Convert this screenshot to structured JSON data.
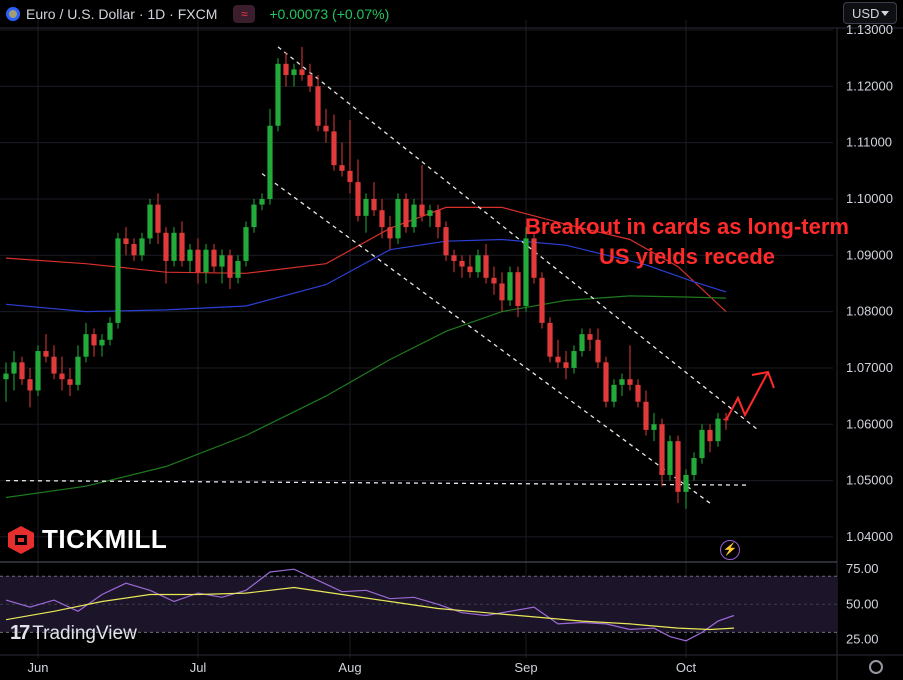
{
  "header": {
    "title": "Euro / U.S. Dollar · 1D · FXCM",
    "badge_icon": "≈",
    "change": "+0.00073 (+0.07%)"
  },
  "currency_select": "USD",
  "branding": {
    "tickmill": "TICKMILL",
    "tradingview": "TradingView"
  },
  "annotation": {
    "line1": "Breakout in cards as long-term",
    "line2": "US yields recede"
  },
  "colors": {
    "up": "#22ab3a",
    "down": "#e03a3a",
    "ma_fast": "#d8302a",
    "ma_mid": "#2b3fd6",
    "ma_slow": "#1e7a1e",
    "rsi": "#9b6ad6",
    "rsi_ma": "#e8e85a",
    "annotation": "#ff2b2b"
  },
  "chart_data": [
    {
      "type": "candlestick",
      "title": "",
      "x_labels": [
        "Jun",
        "Jul",
        "Aug",
        "Sep",
        "Oct"
      ],
      "y_ticks": [
        "1.04000",
        "1.05000",
        "1.06000",
        "1.07000",
        "1.08000",
        "1.09000",
        "1.10000",
        "1.11000",
        "1.12000",
        "1.13000"
      ],
      "ylim": [
        1.0375,
        1.13
      ],
      "grid": true,
      "candles": [
        [
          1.068,
          1.071,
          1.064,
          1.069
        ],
        [
          1.069,
          1.073,
          1.066,
          1.071
        ],
        [
          1.071,
          1.072,
          1.067,
          1.068
        ],
        [
          1.068,
          1.07,
          1.063,
          1.066
        ],
        [
          1.066,
          1.074,
          1.065,
          1.073
        ],
        [
          1.073,
          1.076,
          1.071,
          1.072
        ],
        [
          1.072,
          1.074,
          1.068,
          1.069
        ],
        [
          1.069,
          1.072,
          1.066,
          1.068
        ],
        [
          1.068,
          1.07,
          1.065,
          1.067
        ],
        [
          1.067,
          1.074,
          1.066,
          1.072
        ],
        [
          1.072,
          1.078,
          1.071,
          1.076
        ],
        [
          1.076,
          1.077,
          1.072,
          1.074
        ],
        [
          1.074,
          1.076,
          1.072,
          1.075
        ],
        [
          1.075,
          1.079,
          1.074,
          1.078
        ],
        [
          1.078,
          1.094,
          1.077,
          1.093
        ],
        [
          1.093,
          1.095,
          1.09,
          1.092
        ],
        [
          1.092,
          1.093,
          1.089,
          1.09
        ],
        [
          1.09,
          1.094,
          1.089,
          1.093
        ],
        [
          1.093,
          1.1,
          1.092,
          1.099
        ],
        [
          1.099,
          1.101,
          1.092,
          1.094
        ],
        [
          1.094,
          1.095,
          1.085,
          1.089
        ],
        [
          1.089,
          1.095,
          1.088,
          1.094
        ],
        [
          1.094,
          1.096,
          1.088,
          1.089
        ],
        [
          1.089,
          1.092,
          1.087,
          1.091
        ],
        [
          1.091,
          1.093,
          1.085,
          1.087
        ],
        [
          1.087,
          1.092,
          1.085,
          1.091
        ],
        [
          1.091,
          1.092,
          1.087,
          1.088
        ],
        [
          1.088,
          1.091,
          1.085,
          1.09
        ],
        [
          1.09,
          1.091,
          1.084,
          1.086
        ],
        [
          1.086,
          1.09,
          1.085,
          1.089
        ],
        [
          1.089,
          1.096,
          1.088,
          1.095
        ],
        [
          1.095,
          1.1,
          1.094,
          1.099
        ],
        [
          1.099,
          1.101,
          1.098,
          1.1
        ],
        [
          1.1,
          1.116,
          1.099,
          1.113
        ],
        [
          1.113,
          1.125,
          1.112,
          1.124
        ],
        [
          1.124,
          1.126,
          1.12,
          1.122
        ],
        [
          1.122,
          1.124,
          1.12,
          1.123
        ],
        [
          1.123,
          1.127,
          1.121,
          1.122
        ],
        [
          1.122,
          1.124,
          1.119,
          1.12
        ],
        [
          1.12,
          1.122,
          1.112,
          1.113
        ],
        [
          1.113,
          1.116,
          1.11,
          1.112
        ],
        [
          1.112,
          1.115,
          1.105,
          1.106
        ],
        [
          1.106,
          1.11,
          1.104,
          1.105
        ],
        [
          1.105,
          1.114,
          1.101,
          1.103
        ],
        [
          1.103,
          1.107,
          1.096,
          1.097
        ],
        [
          1.097,
          1.101,
          1.094,
          1.1
        ],
        [
          1.1,
          1.103,
          1.097,
          1.098
        ],
        [
          1.098,
          1.1,
          1.093,
          1.095
        ],
        [
          1.095,
          1.097,
          1.091,
          1.093
        ],
        [
          1.093,
          1.101,
          1.092,
          1.1
        ],
        [
          1.1,
          1.101,
          1.094,
          1.095
        ],
        [
          1.095,
          1.1,
          1.094,
          1.099
        ],
        [
          1.099,
          1.106,
          1.096,
          1.097
        ],
        [
          1.097,
          1.099,
          1.095,
          1.098
        ],
        [
          1.098,
          1.099,
          1.093,
          1.095
        ],
        [
          1.095,
          1.096,
          1.089,
          1.09
        ],
        [
          1.09,
          1.091,
          1.087,
          1.089
        ],
        [
          1.089,
          1.09,
          1.086,
          1.088
        ],
        [
          1.088,
          1.09,
          1.086,
          1.087
        ],
        [
          1.087,
          1.091,
          1.086,
          1.09
        ],
        [
          1.09,
          1.092,
          1.085,
          1.086
        ],
        [
          1.086,
          1.088,
          1.083,
          1.085
        ],
        [
          1.085,
          1.087,
          1.08,
          1.082
        ],
        [
          1.082,
          1.088,
          1.081,
          1.087
        ],
        [
          1.087,
          1.088,
          1.079,
          1.081
        ],
        [
          1.081,
          1.095,
          1.08,
          1.093
        ],
        [
          1.093,
          1.094,
          1.085,
          1.086
        ],
        [
          1.086,
          1.087,
          1.077,
          1.078
        ],
        [
          1.078,
          1.079,
          1.071,
          1.072
        ],
        [
          1.072,
          1.075,
          1.07,
          1.071
        ],
        [
          1.071,
          1.073,
          1.068,
          1.07
        ],
        [
          1.07,
          1.074,
          1.069,
          1.073
        ],
        [
          1.073,
          1.077,
          1.072,
          1.076
        ],
        [
          1.076,
          1.077,
          1.073,
          1.075
        ],
        [
          1.075,
          1.077,
          1.07,
          1.071
        ],
        [
          1.071,
          1.072,
          1.063,
          1.064
        ],
        [
          1.064,
          1.068,
          1.063,
          1.067
        ],
        [
          1.067,
          1.069,
          1.065,
          1.068
        ],
        [
          1.068,
          1.074,
          1.066,
          1.067
        ],
        [
          1.067,
          1.068,
          1.063,
          1.064
        ],
        [
          1.064,
          1.066,
          1.058,
          1.059
        ],
        [
          1.059,
          1.062,
          1.057,
          1.06
        ],
        [
          1.06,
          1.061,
          1.049,
          1.051
        ],
        [
          1.051,
          1.058,
          1.05,
          1.057
        ],
        [
          1.057,
          1.058,
          1.046,
          1.048
        ],
        [
          1.048,
          1.052,
          1.045,
          1.051
        ],
        [
          1.051,
          1.055,
          1.05,
          1.054
        ],
        [
          1.054,
          1.06,
          1.053,
          1.059
        ],
        [
          1.059,
          1.06,
          1.055,
          1.057
        ],
        [
          1.057,
          1.062,
          1.056,
          1.061
        ],
        [
          1.061,
          1.062,
          1.059,
          1.0607
        ]
      ],
      "moving_averages": [
        {
          "color_key": "ma_fast",
          "points": [
            [
              0,
              1.0895
            ],
            [
              10,
              1.0885
            ],
            [
              20,
              1.087
            ],
            [
              30,
              1.0868
            ],
            [
              40,
              1.0885
            ],
            [
              48,
              1.0948
            ],
            [
              55,
              1.0985
            ],
            [
              62,
              1.0985
            ],
            [
              70,
              1.0955
            ],
            [
              78,
              1.0928
            ],
            [
              84,
              1.088
            ],
            [
              90,
              1.08
            ]
          ]
        },
        {
          "color_key": "ma_mid",
          "points": [
            [
              0,
              1.0813
            ],
            [
              10,
              1.08
            ],
            [
              20,
              1.0803
            ],
            [
              30,
              1.081
            ],
            [
              40,
              1.0848
            ],
            [
              48,
              1.091
            ],
            [
              55,
              1.0925
            ],
            [
              62,
              1.0928
            ],
            [
              70,
              1.0918
            ],
            [
              80,
              1.0883
            ],
            [
              86,
              1.0853
            ],
            [
              90,
              1.0835
            ]
          ]
        },
        {
          "color_key": "ma_slow",
          "points": [
            [
              0,
              1.047
            ],
            [
              10,
              1.049
            ],
            [
              20,
              1.0525
            ],
            [
              30,
              1.058
            ],
            [
              40,
              1.065
            ],
            [
              48,
              1.0715
            ],
            [
              55,
              1.0765
            ],
            [
              62,
              1.08
            ],
            [
              70,
              1.082
            ],
            [
              78,
              1.0828
            ],
            [
              85,
              1.0826
            ],
            [
              90,
              1.0824
            ]
          ]
        }
      ],
      "channel": {
        "upper": [
          [
            34,
            1.127
          ],
          [
            94,
            1.059
          ]
        ],
        "lower": [
          [
            32,
            1.1045
          ],
          [
            88,
            1.046
          ]
        ],
        "support": [
          [
            0,
            1.05
          ],
          [
            93,
            1.0492
          ]
        ]
      }
    },
    {
      "type": "line",
      "title": "",
      "y_ticks": [
        "25.00",
        "50.00",
        "75.00"
      ],
      "ylim": [
        16,
        78
      ],
      "bands": [
        30,
        70
      ],
      "series": [
        {
          "color_key": "rsi",
          "points": [
            [
              0,
              53
            ],
            [
              3,
              48
            ],
            [
              6,
              53
            ],
            [
              9,
              45
            ],
            [
              12,
              57
            ],
            [
              15,
              65
            ],
            [
              18,
              60
            ],
            [
              21,
              52
            ],
            [
              24,
              58
            ],
            [
              27,
              55
            ],
            [
              30,
              60
            ],
            [
              33,
              73
            ],
            [
              36,
              75
            ],
            [
              39,
              67
            ],
            [
              42,
              59
            ],
            [
              45,
              60
            ],
            [
              48,
              54
            ],
            [
              51,
              55
            ],
            [
              54,
              50
            ],
            [
              57,
              44
            ],
            [
              60,
              42
            ],
            [
              63,
              45
            ],
            [
              66,
              48
            ],
            [
              69,
              36
            ],
            [
              72,
              37
            ],
            [
              75,
              36
            ],
            [
              78,
              32
            ],
            [
              81,
              33
            ],
            [
              83,
              27
            ],
            [
              85,
              24
            ],
            [
              87,
              30
            ],
            [
              89,
              38
            ],
            [
              91,
              42
            ]
          ]
        },
        {
          "color_key": "rsi_ma",
          "points": [
            [
              0,
              39
            ],
            [
              6,
              45
            ],
            [
              12,
              52
            ],
            [
              18,
              57
            ],
            [
              24,
              57
            ],
            [
              30,
              58
            ],
            [
              36,
              62
            ],
            [
              42,
              57
            ],
            [
              48,
              52
            ],
            [
              54,
              47
            ],
            [
              60,
              44
            ],
            [
              66,
              41
            ],
            [
              72,
              38
            ],
            [
              78,
              36
            ],
            [
              84,
              33
            ],
            [
              88,
              32
            ],
            [
              91,
              33
            ]
          ]
        }
      ]
    }
  ]
}
